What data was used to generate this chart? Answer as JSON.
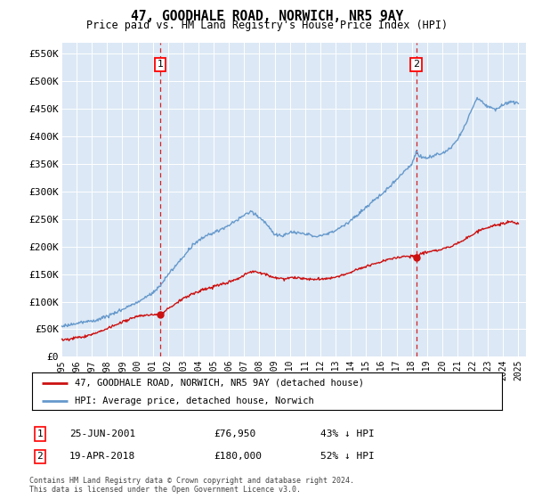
{
  "title": "47, GOODHALE ROAD, NORWICH, NR5 9AY",
  "subtitle": "Price paid vs. HM Land Registry's House Price Index (HPI)",
  "ylabel_ticks": [
    "£0",
    "£50K",
    "£100K",
    "£150K",
    "£200K",
    "£250K",
    "£300K",
    "£350K",
    "£400K",
    "£450K",
    "£500K",
    "£550K"
  ],
  "ylim": [
    0,
    570000
  ],
  "yticks": [
    0,
    50000,
    100000,
    150000,
    200000,
    250000,
    300000,
    350000,
    400000,
    450000,
    500000,
    550000
  ],
  "background_color": "#dce8f5",
  "hpi_color": "#6699cc",
  "price_color": "#cc1111",
  "vline_color": "#cc0000",
  "marker1_date": 2001.48,
  "marker2_date": 2018.29,
  "marker1_price": 76950,
  "marker2_price": 180000,
  "legend_line1": "47, GOODHALE ROAD, NORWICH, NR5 9AY (detached house)",
  "legend_line2": "HPI: Average price, detached house, Norwich",
  "annotation1_label": "1",
  "annotation1_date": "25-JUN-2001",
  "annotation1_price": "£76,950",
  "annotation1_pct": "43% ↓ HPI",
  "annotation2_label": "2",
  "annotation2_date": "19-APR-2018",
  "annotation2_price": "£180,000",
  "annotation2_pct": "52% ↓ HPI",
  "footer": "Contains HM Land Registry data © Crown copyright and database right 2024.\nThis data is licensed under the Open Government Licence v3.0.",
  "xmin": 1995,
  "xmax": 2025.5
}
